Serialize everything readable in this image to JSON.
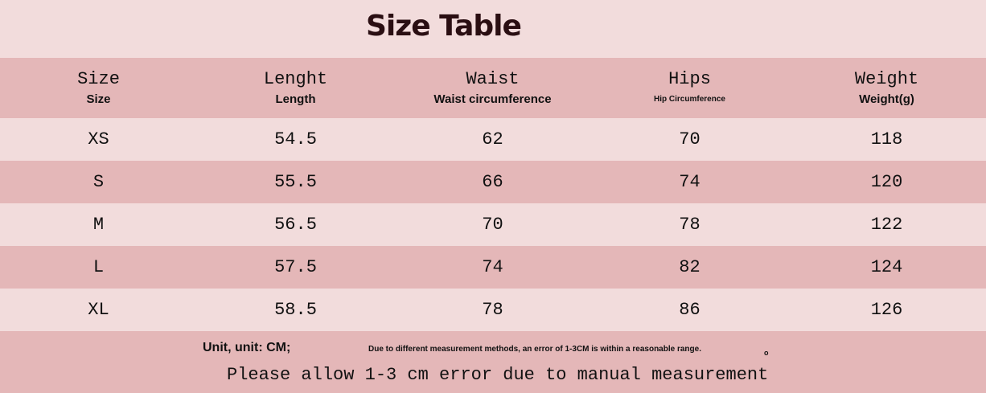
{
  "title": "Size Table",
  "headers": [
    {
      "label": "Size",
      "sub": "Size"
    },
    {
      "label": "Lenght",
      "sub": "Length"
    },
    {
      "label": "Waist",
      "sub": "Waist circumference"
    },
    {
      "label": "Hips",
      "sub": "Hip Circumference"
    },
    {
      "label": "Weight",
      "sub": "Weight(g)"
    }
  ],
  "rows": [
    [
      "XS",
      "54.5",
      "62",
      "70",
      "118"
    ],
    [
      "S",
      "55.5",
      "66",
      "74",
      "120"
    ],
    [
      "M",
      "56.5",
      "70",
      "78",
      "122"
    ],
    [
      "L",
      "57.5",
      "74",
      "82",
      "124"
    ],
    [
      "XL",
      "58.5",
      "78",
      "86",
      "126"
    ]
  ],
  "footer": {
    "unit": "Unit, unit: CM;",
    "note": "Due to different measurement methods, an error of 1-3CM is within a reasonable range.",
    "dot": "o",
    "allow": "Please allow 1-3 cm error due to manual measurement"
  },
  "colors": {
    "light": "#f2dcdc",
    "dark": "#e4b7b8",
    "title": "#2a0e12"
  }
}
